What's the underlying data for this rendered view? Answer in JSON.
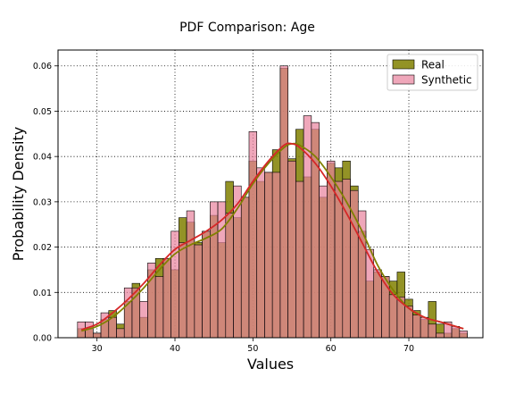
{
  "chart_data": {
    "type": "bar",
    "title": "PDF Comparison: Age",
    "xlabel": "Values",
    "ylabel": "Probability Density",
    "xlim": [
      25,
      79.5
    ],
    "ylim": [
      0,
      0.0635
    ],
    "xticks": [
      30,
      40,
      50,
      60,
      70
    ],
    "yticks": [
      0.0,
      0.01,
      0.02,
      0.03,
      0.04,
      0.05,
      0.06
    ],
    "ytick_labels": [
      "0.00",
      "0.01",
      "0.02",
      "0.03",
      "0.04",
      "0.05",
      "0.06"
    ],
    "grid": true,
    "legend_position": "top-right",
    "bin_start": 27.5,
    "bin_width": 1,
    "series": [
      {
        "name": "Real",
        "color": "#808000",
        "values": [
          0.002,
          0.002,
          0.001,
          0.004,
          0.006,
          0.003,
          0.008,
          0.012,
          0.0045,
          0.015,
          0.0175,
          0.0175,
          0.015,
          0.0265,
          0.0255,
          0.021,
          0.0235,
          0.027,
          0.021,
          0.0345,
          0.0265,
          0.031,
          0.039,
          0.0345,
          0.0365,
          0.0415,
          0.0595,
          0.0395,
          0.046,
          0.0355,
          0.046,
          0.031,
          0.0385,
          0.0375,
          0.039,
          0.0335,
          0.0235,
          0.0125,
          0.0145,
          0.0135,
          0.0125,
          0.0145,
          0.0085,
          0.006,
          0.004,
          0.008,
          0.003,
          0.001,
          0.002,
          0.001
        ]
      },
      {
        "name": "Synthetic",
        "color": "#e8829c",
        "values": [
          0.0035,
          0.0035,
          0.001,
          0.0055,
          0.0045,
          0.002,
          0.011,
          0.011,
          0.008,
          0.0165,
          0.0135,
          0.0175,
          0.0235,
          0.021,
          0.028,
          0.0205,
          0.0235,
          0.03,
          0.03,
          0.0275,
          0.0335,
          0.031,
          0.0455,
          0.0375,
          0.0365,
          0.0365,
          0.06,
          0.039,
          0.0345,
          0.049,
          0.0475,
          0.0335,
          0.039,
          0.0345,
          0.035,
          0.0325,
          0.028,
          0.0195,
          0.015,
          0.0135,
          0.0095,
          0.009,
          0.007,
          0.005,
          0.0045,
          0.003,
          0.001,
          0.0035,
          0.0025,
          0.0015
        ]
      }
    ],
    "kde": [
      {
        "name": "Real",
        "color": "#808000",
        "x": [
          28,
          30,
          32,
          34,
          36,
          38,
          40,
          42,
          44,
          46,
          48,
          50,
          52,
          54,
          55,
          56,
          58,
          60,
          62,
          64,
          66,
          68,
          70,
          72,
          74,
          76,
          77
        ],
        "y": [
          0.0015,
          0.0025,
          0.0045,
          0.0075,
          0.011,
          0.015,
          0.0185,
          0.0205,
          0.022,
          0.024,
          0.0285,
          0.034,
          0.0385,
          0.042,
          0.0428,
          0.0425,
          0.04,
          0.0355,
          0.03,
          0.0235,
          0.016,
          0.0105,
          0.0065,
          0.0045,
          0.0035,
          0.0025,
          0.002
        ]
      },
      {
        "name": "Synthetic",
        "color": "#d62728",
        "x": [
          28,
          30,
          32,
          34,
          36,
          38,
          40,
          42,
          44,
          46,
          48,
          50,
          52,
          54,
          55,
          56,
          58,
          60,
          62,
          64,
          66,
          68,
          70,
          72,
          74,
          76,
          77
        ],
        "y": [
          0.0018,
          0.003,
          0.0055,
          0.0085,
          0.012,
          0.016,
          0.0195,
          0.0215,
          0.0235,
          0.026,
          0.0295,
          0.0345,
          0.039,
          0.0425,
          0.0428,
          0.042,
          0.0385,
          0.0335,
          0.0275,
          0.021,
          0.0145,
          0.0095,
          0.0065,
          0.0045,
          0.0035,
          0.0025,
          0.002
        ]
      }
    ]
  }
}
